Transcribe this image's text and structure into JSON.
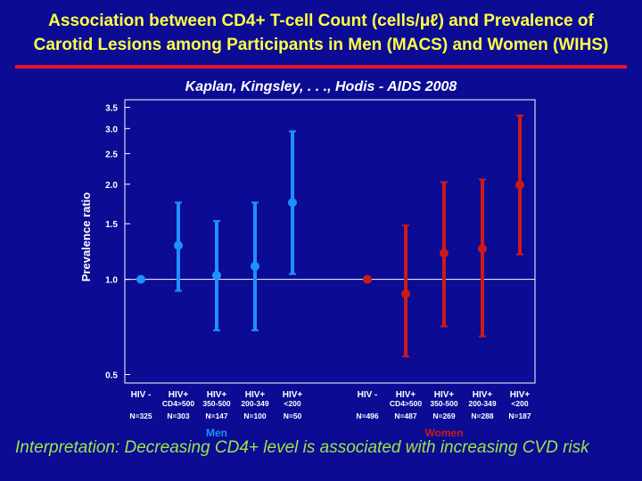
{
  "slide": {
    "title_line1": "Association between CD4+ T-cell Count (cells/μℓ) and Prevalence of",
    "title_line2": "Carotid Lesions among Participants in Men (MACS) and Women (WIHS)",
    "citation": "Kaplan, Kingsley, . . ., Hodis  -  AIDS 2008",
    "interpretation": "Interpretation: Decreasing CD4+ level is associated with increasing CVD risk"
  },
  "colors": {
    "background": "#0b0b93",
    "title": "#ffff44",
    "rule": "#e8122a",
    "men": "#1e90ff",
    "women": "#cc1a1a",
    "interpretation": "#9fe34a",
    "axis": "#ffffff"
  },
  "chart_data": {
    "type": "scatter",
    "variant": "point-estimate with confidence interval error bars",
    "ylabel": "Prevalence ratio",
    "yscale": "log",
    "ylim": [
      0.47,
      3.7
    ],
    "yticks": [
      "0.5",
      "1.0",
      "1.5",
      "2.0",
      "2.5",
      "3.0",
      "3.5"
    ],
    "reference_line": 1.0,
    "grid": false,
    "groups": [
      {
        "name": "Men",
        "categories": [
          {
            "label": [
              "HIV -"
            ],
            "n": "N=325",
            "estimate": 1.0,
            "ci": null
          },
          {
            "label": [
              "HIV+",
              "CD4>500"
            ],
            "n": "N=303",
            "estimate": 1.28,
            "ci": [
              0.92,
              1.75
            ]
          },
          {
            "label": [
              "HIV+",
              "350-500"
            ],
            "n": "N=147",
            "estimate": 1.03,
            "ci": [
              0.69,
              1.53
            ]
          },
          {
            "label": [
              "HIV+",
              "200-349"
            ],
            "n": "N=100",
            "estimate": 1.1,
            "ci": [
              0.69,
              1.75
            ]
          },
          {
            "label": [
              "HIV+",
              "<200"
            ],
            "n": "N=50",
            "estimate": 1.75,
            "ci": [
              1.04,
              2.94
            ]
          }
        ]
      },
      {
        "name": "Women",
        "categories": [
          {
            "label": [
              "HIV -"
            ],
            "n": "N=496",
            "estimate": 1.0,
            "ci": null
          },
          {
            "label": [
              "HIV+",
              "CD4>500"
            ],
            "n": "N=487",
            "estimate": 0.9,
            "ci": [
              0.57,
              1.48
            ]
          },
          {
            "label": [
              "HIV+",
              "350-500"
            ],
            "n": "N=269",
            "estimate": 1.21,
            "ci": [
              0.71,
              2.03
            ]
          },
          {
            "label": [
              "HIV+",
              "200-349"
            ],
            "n": "N=288",
            "estimate": 1.25,
            "ci": [
              0.66,
              2.07
            ]
          },
          {
            "label": [
              "HIV+",
              "<200"
            ],
            "n": "N=187",
            "estimate": 1.99,
            "ci": [
              1.2,
              3.3
            ]
          }
        ]
      }
    ]
  }
}
